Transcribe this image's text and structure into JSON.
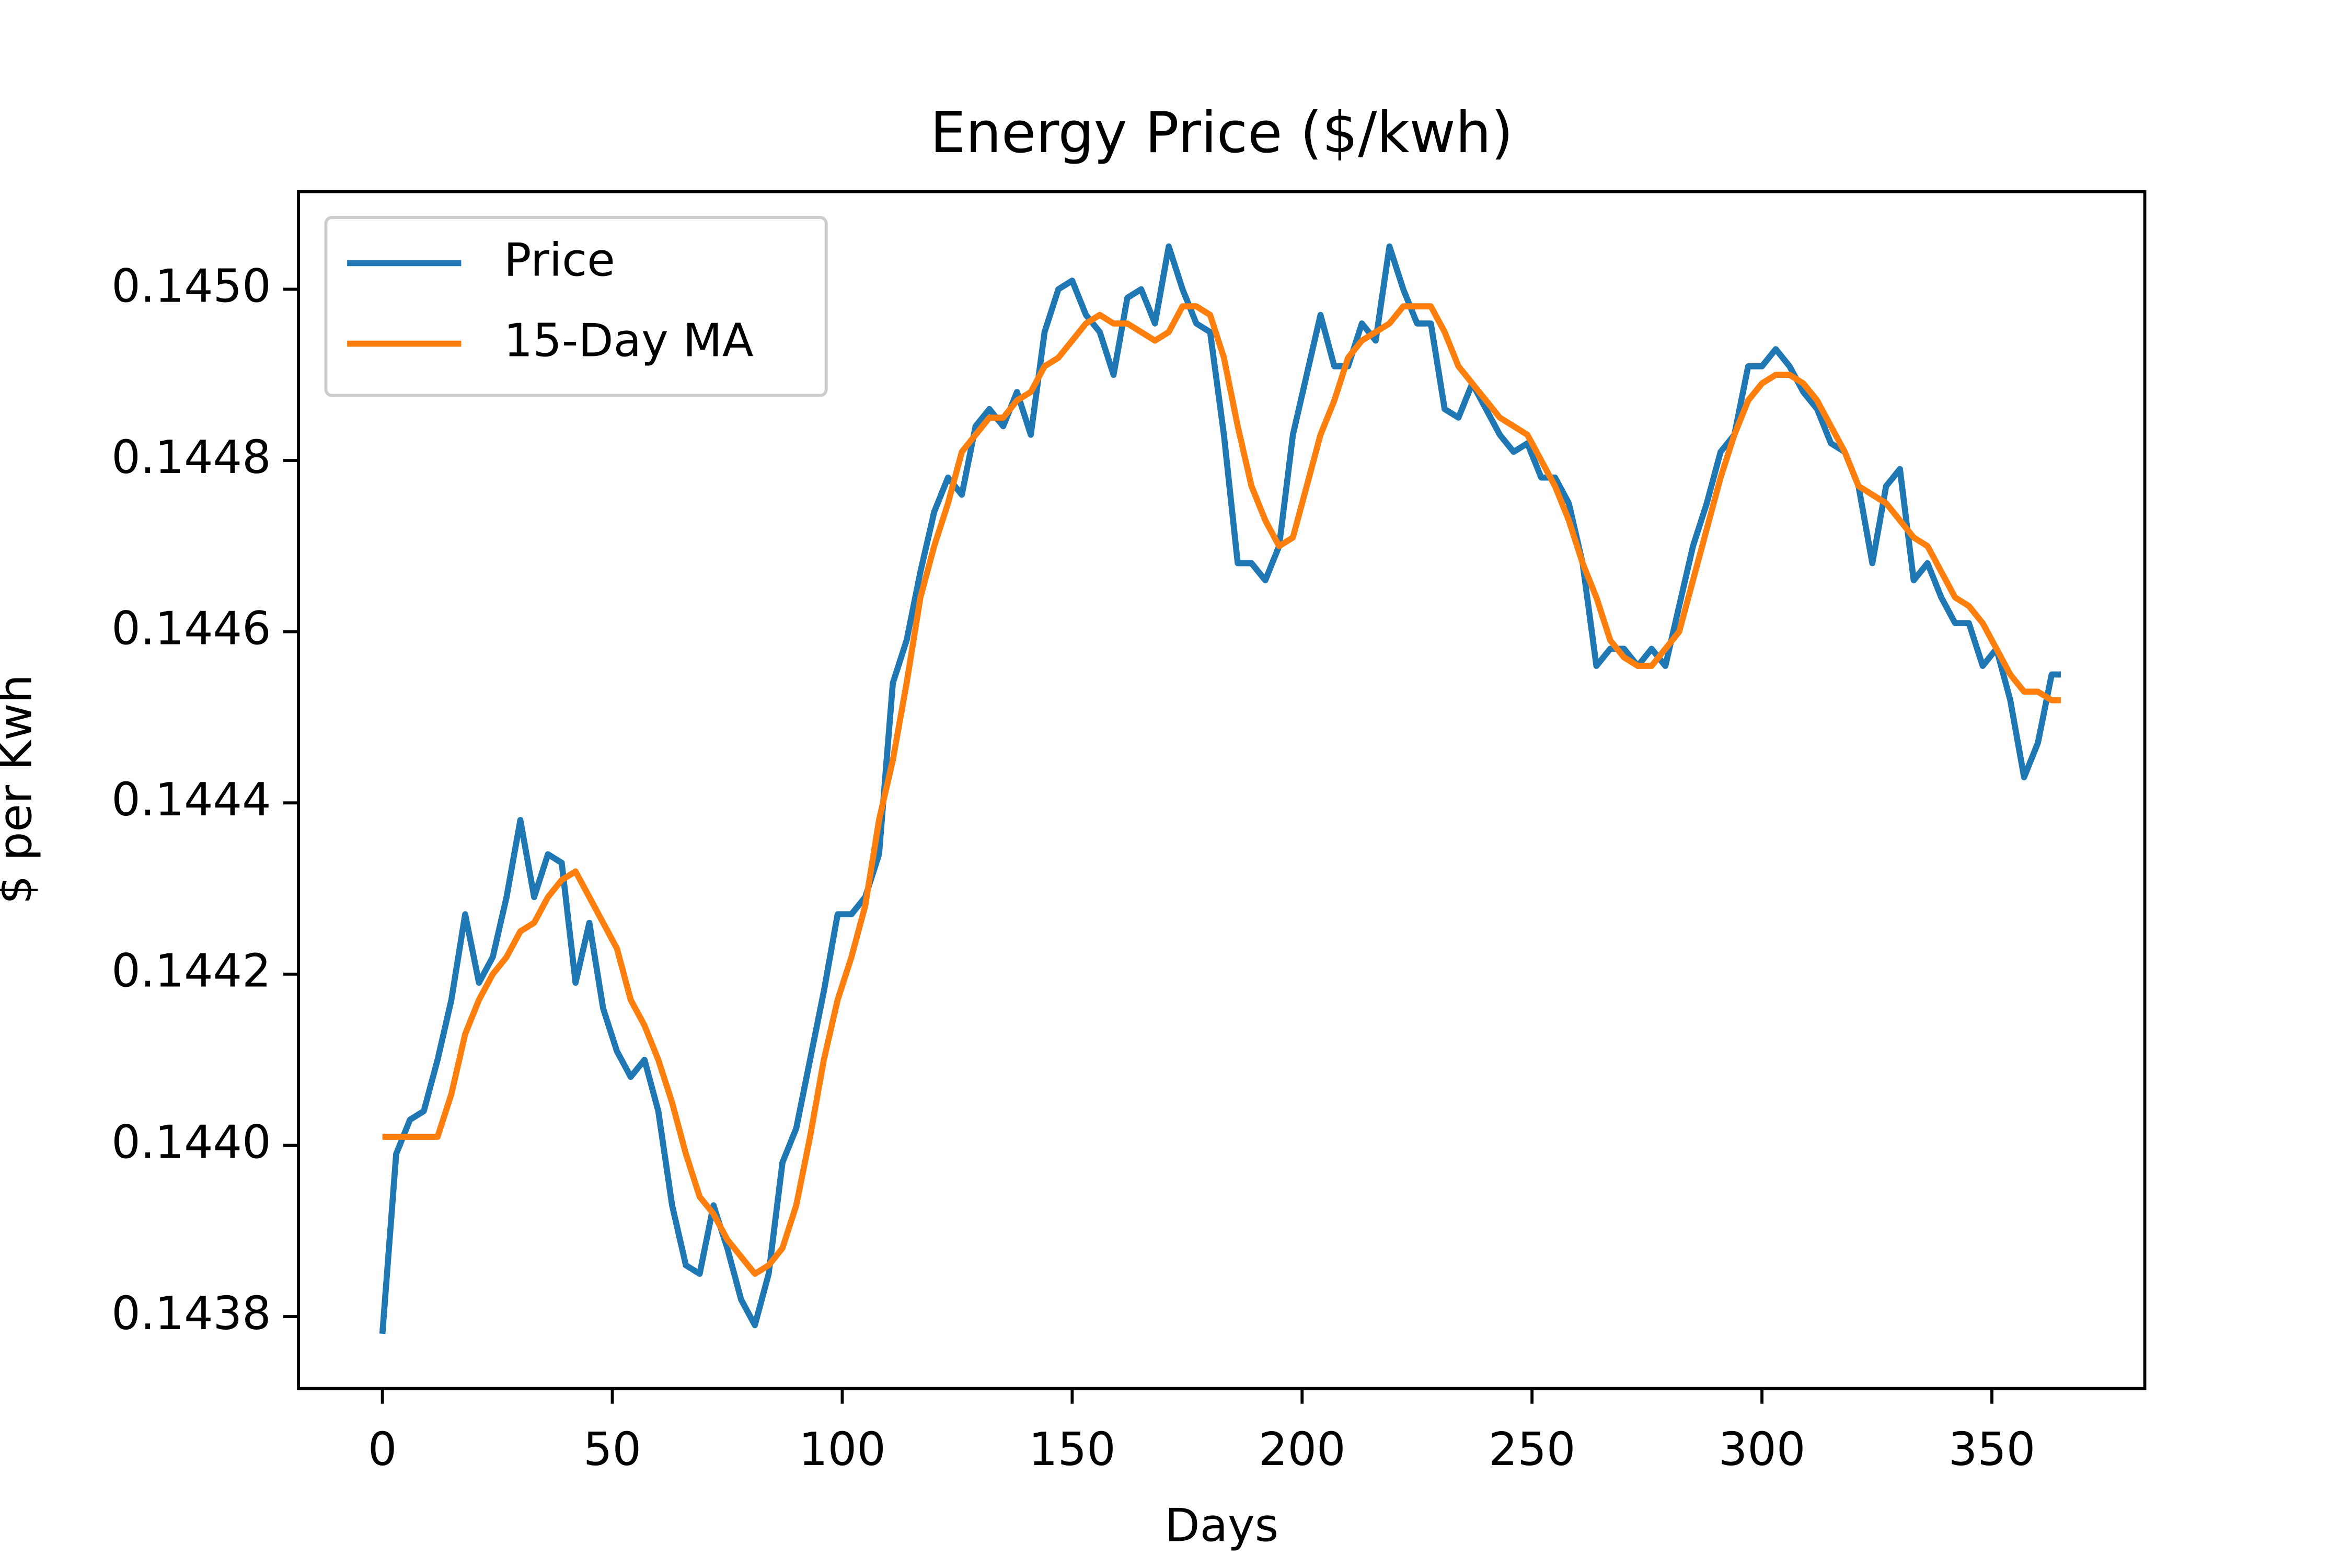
{
  "chart_data": {
    "type": "line",
    "title": "Energy Price ($/kwh)",
    "x_label": "Days",
    "y_label": "$ per Kwh",
    "x": [
      0,
      3,
      6,
      9,
      12,
      15,
      18,
      21,
      24,
      27,
      30,
      33,
      36,
      39,
      42,
      45,
      48,
      51,
      54,
      57,
      60,
      63,
      66,
      69,
      72,
      75,
      78,
      81,
      84,
      87,
      90,
      93,
      96,
      99,
      102,
      105,
      108,
      111,
      114,
      117,
      120,
      123,
      126,
      129,
      132,
      135,
      138,
      141,
      144,
      147,
      150,
      153,
      156,
      159,
      162,
      165,
      168,
      171,
      174,
      177,
      180,
      183,
      186,
      189,
      192,
      195,
      198,
      201,
      204,
      207,
      210,
      213,
      216,
      219,
      222,
      225,
      228,
      231,
      234,
      237,
      240,
      243,
      246,
      249,
      252,
      255,
      258,
      261,
      264,
      267,
      270,
      273,
      276,
      279,
      282,
      285,
      288,
      291,
      294,
      297,
      300,
      303,
      306,
      309,
      312,
      315,
      318,
      321,
      324,
      327,
      330,
      333,
      336,
      339,
      342,
      345,
      348,
      351,
      354,
      357,
      360,
      363,
      365
    ],
    "series": [
      {
        "name": "Price",
        "color": "#1f77b4",
        "values": [
          0.14378,
          0.14399,
          0.14403,
          0.14404,
          0.1441,
          0.14417,
          0.14427,
          0.14419,
          0.14422,
          0.14429,
          0.14438,
          0.14429,
          0.14434,
          0.14433,
          0.14419,
          0.14426,
          0.14416,
          0.14411,
          0.14408,
          0.1441,
          0.14404,
          0.14393,
          0.14386,
          0.14385,
          0.14393,
          0.14388,
          0.14382,
          0.14379,
          0.14385,
          0.14398,
          0.14402,
          0.1441,
          0.14418,
          0.14427,
          0.14427,
          0.14429,
          0.14434,
          0.14454,
          0.14459,
          0.14467,
          0.14474,
          0.14478,
          0.14476,
          0.14484,
          0.14486,
          0.14484,
          0.14488,
          0.14483,
          0.14495,
          0.145,
          0.14501,
          0.14497,
          0.14495,
          0.1449,
          0.14499,
          0.145,
          0.14496,
          0.14505,
          0.145,
          0.14496,
          0.14495,
          0.14483,
          0.14468,
          0.14468,
          0.14466,
          0.1447,
          0.14483,
          0.1449,
          0.14497,
          0.14491,
          0.14491,
          0.14496,
          0.14494,
          0.14505,
          0.145,
          0.14496,
          0.14496,
          0.14486,
          0.14485,
          0.14489,
          0.14486,
          0.14483,
          0.14481,
          0.14482,
          0.14478,
          0.14478,
          0.14475,
          0.14468,
          0.14456,
          0.14458,
          0.14458,
          0.14456,
          0.14458,
          0.14456,
          0.14463,
          0.1447,
          0.14475,
          0.14481,
          0.14483,
          0.14491,
          0.14491,
          0.14493,
          0.14491,
          0.14488,
          0.14486,
          0.14482,
          0.14481,
          0.14477,
          0.14468,
          0.14477,
          0.14479,
          0.14466,
          0.14468,
          0.14464,
          0.14461,
          0.14461,
          0.14456,
          0.14458,
          0.14452,
          0.14443,
          0.14447,
          0.14455,
          0.14455
        ]
      },
      {
        "name": "15-Day MA",
        "color": "#ff7f0e",
        "values": [
          0.14401,
          0.14401,
          0.14401,
          0.14401,
          0.14401,
          0.14406,
          0.14413,
          0.14417,
          0.1442,
          0.14422,
          0.14425,
          0.14426,
          0.14429,
          0.14431,
          0.14432,
          0.14429,
          0.14426,
          0.14423,
          0.14417,
          0.14414,
          0.1441,
          0.14405,
          0.14399,
          0.14394,
          0.14392,
          0.14389,
          0.14387,
          0.14385,
          0.14386,
          0.14388,
          0.14393,
          0.14401,
          0.1441,
          0.14417,
          0.14422,
          0.14428,
          0.14438,
          0.14445,
          0.14454,
          0.14464,
          0.1447,
          0.14475,
          0.14481,
          0.14483,
          0.14485,
          0.14485,
          0.14487,
          0.14488,
          0.14491,
          0.14492,
          0.14494,
          0.14496,
          0.14497,
          0.14496,
          0.14496,
          0.14495,
          0.14494,
          0.14495,
          0.14498,
          0.14498,
          0.14497,
          0.14492,
          0.14484,
          0.14477,
          0.14473,
          0.1447,
          0.14471,
          0.14477,
          0.14483,
          0.14487,
          0.14492,
          0.14494,
          0.14495,
          0.14496,
          0.14498,
          0.14498,
          0.14498,
          0.14495,
          0.14491,
          0.14489,
          0.14487,
          0.14485,
          0.14484,
          0.14483,
          0.1448,
          0.14477,
          0.14473,
          0.14468,
          0.14464,
          0.14459,
          0.14457,
          0.14456,
          0.14456,
          0.14458,
          0.1446,
          0.14466,
          0.14472,
          0.14478,
          0.14483,
          0.14487,
          0.14489,
          0.1449,
          0.1449,
          0.14489,
          0.14487,
          0.14484,
          0.14481,
          0.14477,
          0.14476,
          0.14475,
          0.14473,
          0.14471,
          0.1447,
          0.14467,
          0.14464,
          0.14463,
          0.14461,
          0.14458,
          0.14455,
          0.14453,
          0.14453,
          0.14452,
          0.14452
        ]
      }
    ],
    "xlim": [
      -18.25,
      383.25
    ],
    "ylim": [
      0.143716,
      0.145114
    ],
    "xticks": [
      0,
      50,
      100,
      150,
      200,
      250,
      300,
      350
    ],
    "yticks": [
      0.1438,
      {
        "value": 0.144,
        "label": "0.1440"
      },
      0.1442,
      0.1444,
      0.1446,
      0.1448,
      {
        "value": 0.145,
        "label": "0.1450"
      }
    ],
    "legend": "upper left"
  }
}
